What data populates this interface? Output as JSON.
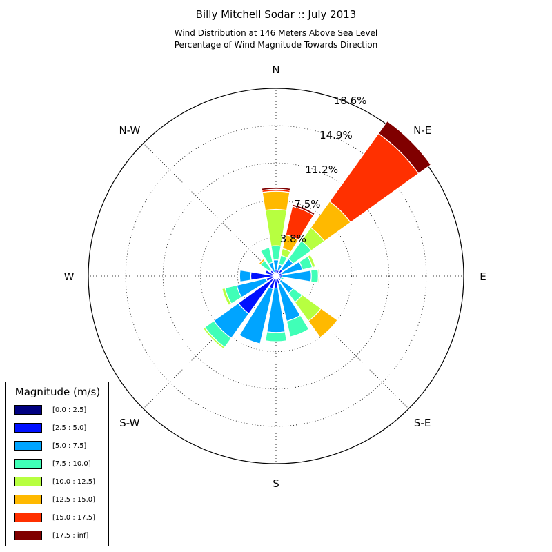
{
  "title": "Billy Mitchell Sodar :: July 2013",
  "subtitle_line1": "Wind Distribution at 146 Meters Above Sea Level",
  "subtitle_line2": "Percentage of Wind Magnitude Towards Direction",
  "legend": {
    "title": "Magnitude (m/s)",
    "items": [
      {
        "label": "[0.0 : 2.5]",
        "color": "#000080"
      },
      {
        "label": "[2.5 : 5.0]",
        "color": "#0010ff"
      },
      {
        "label": "[5.0 : 7.5]",
        "color": "#00a4ff"
      },
      {
        "label": "[7.5 : 10.0]",
        "color": "#40ffb7"
      },
      {
        "label": "[10.0 : 12.5]",
        "color": "#b7ff40"
      },
      {
        "label": "[12.5 : 15.0]",
        "color": "#ffb900"
      },
      {
        "label": "[15.0 : 17.5]",
        "color": "#ff3000"
      },
      {
        "label": "[17.5 : inf]",
        "color": "#800000"
      }
    ]
  },
  "chart_data": {
    "type": "windrose",
    "title": "Billy Mitchell Sodar :: July 2013",
    "direction_labels": [
      {
        "label": "N",
        "angle": 0
      },
      {
        "label": "N-E",
        "angle": 45
      },
      {
        "label": "E",
        "angle": 90
      },
      {
        "label": "S-E",
        "angle": 135
      },
      {
        "label": "S",
        "angle": 180
      },
      {
        "label": "S-W",
        "angle": 225
      },
      {
        "label": "W",
        "angle": 270
      },
      {
        "label": "N-W",
        "angle": 315
      }
    ],
    "radial_ticks": [
      "3.8%",
      "7.5%",
      "11.2%",
      "14.9%",
      "18.6%"
    ],
    "radial_tick_values": [
      3.8,
      7.5,
      11.2,
      14.9,
      18.6
    ],
    "rmax": 18.6,
    "grid": true,
    "legend_placement": "lower-left",
    "sectors_deg": [
      0,
      22.5,
      45,
      67.5,
      90,
      112.5,
      135,
      157.5,
      180,
      202.5,
      225,
      247.5,
      270,
      292.5,
      315,
      337.5
    ],
    "bins": [
      "[0.0 : 2.5]",
      "[2.5 : 5.0]",
      "[5.0 : 7.5]",
      "[7.5 : 10.0]",
      "[10.0 : 12.5]",
      "[12.5 : 15.0]",
      "[15.0 : 17.5]",
      "[17.5 : inf]"
    ],
    "cumulative_percent": [
      [
        0.3,
        0.6,
        1.6,
        3.0,
        6.6,
        8.4,
        8.6,
        8.8
      ],
      [
        0.3,
        0.6,
        1.2,
        2.1,
        2.8,
        4.2,
        7.1,
        7.3
      ],
      [
        0.3,
        0.8,
        2.1,
        4.3,
        5.9,
        9.1,
        17.4,
        18.9
      ],
      [
        0.2,
        0.6,
        2.7,
        3.7,
        4.0,
        4.0,
        4.0,
        4.0
      ],
      [
        0.2,
        0.6,
        3.5,
        4.2,
        4.3,
        4.3,
        4.3,
        4.3
      ],
      [
        0.2,
        0.4,
        0.6,
        0.8,
        0.8,
        0.8,
        0.8,
        0.8
      ],
      [
        0.2,
        0.6,
        2.1,
        3.2,
        5.5,
        7.5,
        7.5,
        7.5
      ],
      [
        0.2,
        0.8,
        4.6,
        6.2,
        6.2,
        6.2,
        6.2,
        6.2
      ],
      [
        0.2,
        1.2,
        5.6,
        6.5,
        6.5,
        6.5,
        6.5,
        6.5
      ],
      [
        0.2,
        1.3,
        6.9,
        6.9,
        6.9,
        6.9,
        6.9,
        6.9
      ],
      [
        0.3,
        4.6,
        7.6,
        8.7,
        8.9,
        8.9,
        8.9,
        8.9
      ],
      [
        0.2,
        1.0,
        4.0,
        5.2,
        5.5,
        5.5,
        5.5,
        5.5
      ],
      [
        0.2,
        2.5,
        3.6,
        3.6,
        3.6,
        3.6,
        3.6,
        3.6
      ],
      [
        0.2,
        1.1,
        1.1,
        1.1,
        1.1,
        1.1,
        1.1,
        1.1
      ],
      [
        0.2,
        0.7,
        0.7,
        1.9,
        1.9,
        2.1,
        2.1,
        2.1
      ],
      [
        0.2,
        0.4,
        1.4,
        2.9,
        2.9,
        2.9,
        2.9,
        2.9
      ]
    ]
  }
}
